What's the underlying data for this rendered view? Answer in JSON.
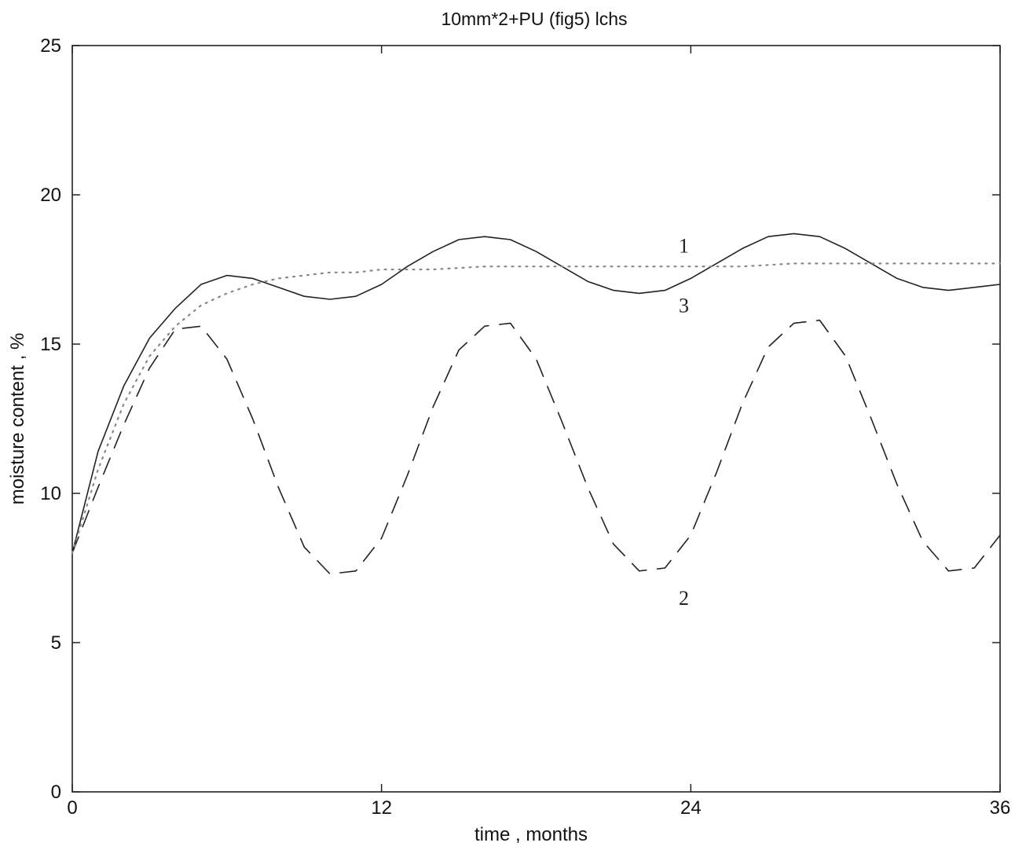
{
  "chart_data": {
    "type": "line",
    "title": "10mm*2+PU (fig5) lchs",
    "xlabel": "time , months",
    "ylabel": "moisture content , %",
    "xlim": [
      0,
      36
    ],
    "ylim": [
      0,
      25
    ],
    "xticks": [
      0,
      12,
      24,
      36
    ],
    "yticks": [
      0,
      5,
      10,
      15,
      20,
      25
    ],
    "grid": false,
    "series": [
      {
        "name": "1",
        "style": "solid",
        "color": "#222222",
        "x": [
          0,
          1,
          2,
          3,
          4,
          5,
          6,
          7,
          8,
          9,
          10,
          11,
          12,
          13,
          14,
          15,
          16,
          17,
          18,
          19,
          20,
          21,
          22,
          23,
          24,
          25,
          26,
          27,
          28,
          29,
          30,
          31,
          32,
          33,
          34,
          35,
          36
        ],
        "values": [
          8.0,
          11.4,
          13.6,
          15.2,
          16.2,
          17.0,
          17.3,
          17.2,
          16.9,
          16.6,
          16.5,
          16.6,
          17.0,
          17.6,
          18.1,
          18.5,
          18.6,
          18.5,
          18.1,
          17.6,
          17.1,
          16.8,
          16.7,
          16.8,
          17.2,
          17.7,
          18.2,
          18.6,
          18.7,
          18.6,
          18.2,
          17.7,
          17.2,
          16.9,
          16.8,
          16.9,
          17.0
        ]
      },
      {
        "name": "2",
        "style": "dashed",
        "color": "#222222",
        "x": [
          0,
          1,
          2,
          3,
          4,
          5,
          6,
          7,
          8,
          9,
          10,
          11,
          12,
          13,
          14,
          15,
          16,
          17,
          18,
          19,
          20,
          21,
          22,
          23,
          24,
          25,
          26,
          27,
          28,
          29,
          30,
          31,
          32,
          33,
          34,
          35,
          36
        ],
        "values": [
          8.0,
          10.2,
          12.3,
          14.2,
          15.5,
          15.6,
          14.5,
          12.5,
          10.2,
          8.2,
          7.3,
          7.4,
          8.5,
          10.6,
          12.9,
          14.8,
          15.6,
          15.7,
          14.5,
          12.4,
          10.2,
          8.3,
          7.4,
          7.5,
          8.6,
          10.7,
          13.0,
          14.9,
          15.7,
          15.8,
          14.6,
          12.5,
          10.3,
          8.4,
          7.4,
          7.5,
          8.6
        ]
      },
      {
        "name": "3",
        "style": "dotted",
        "color": "#888888",
        "x": [
          0,
          1,
          2,
          3,
          4,
          5,
          6,
          7,
          8,
          9,
          10,
          11,
          12,
          14,
          16,
          18,
          20,
          22,
          24,
          26,
          28,
          30,
          32,
          34,
          36
        ],
        "values": [
          8.0,
          10.8,
          13.0,
          14.6,
          15.6,
          16.3,
          16.7,
          17.0,
          17.2,
          17.3,
          17.4,
          17.4,
          17.5,
          17.5,
          17.6,
          17.6,
          17.6,
          17.6,
          17.6,
          17.6,
          17.7,
          17.7,
          17.7,
          17.7,
          17.7
        ]
      }
    ],
    "annotations": [
      {
        "text": "1",
        "x": 23,
        "y": 18.3
      },
      {
        "text": "3",
        "x": 23,
        "y": 16.3
      },
      {
        "text": "2",
        "x": 23,
        "y": 6.5
      }
    ]
  }
}
